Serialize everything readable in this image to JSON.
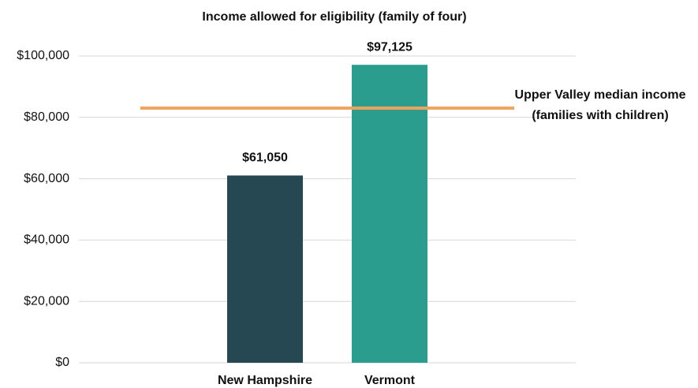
{
  "chart_data": {
    "type": "bar",
    "title": "Income allowed for eligibility (family of four)",
    "categories": [
      "New Hampshire",
      "Vermont"
    ],
    "values": [
      61050,
      97125
    ],
    "value_labels": [
      "$61,050",
      "$97,125"
    ],
    "colors": [
      "#264852",
      "#2a9d8f"
    ],
    "ylim": [
      0,
      100000
    ],
    "yticks": [
      {
        "value": 0,
        "label": "$0"
      },
      {
        "value": 20000,
        "label": "$20,000"
      },
      {
        "value": 40000,
        "label": "$40,000"
      },
      {
        "value": 60000,
        "label": "$60,000"
      },
      {
        "value": 80000,
        "label": "$80,000"
      },
      {
        "value": 100000,
        "label": "$100,000"
      }
    ],
    "grid": true,
    "reference_line": {
      "value": 83000,
      "color": "#f0a35e",
      "label": [
        "Upper Valley median income",
        "(families with children)"
      ]
    }
  }
}
